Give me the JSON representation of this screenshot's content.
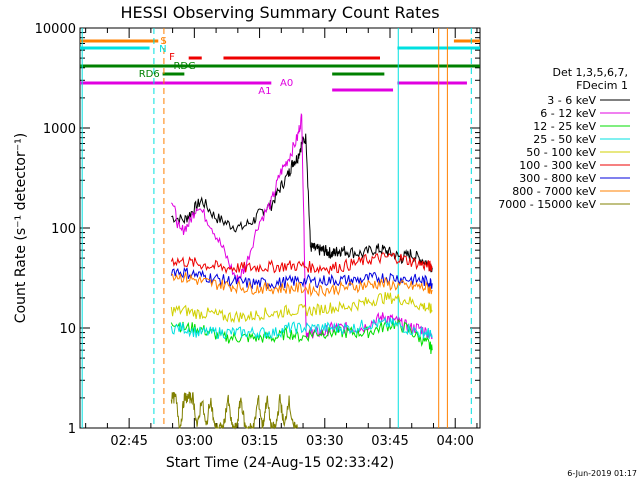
{
  "chart_data": {
    "type": "line",
    "title": "HESSI Observing Summary Count Rates",
    "xlabel": "Start Time (24-Aug-15 02:33:42)",
    "ylabel": "Count Rate (s⁻¹ detector⁻¹)",
    "yscale": "log",
    "ylim": [
      1,
      10000
    ],
    "xlim_minutes": [
      0,
      92
    ],
    "x_ticks": [
      "02:45",
      "03:00",
      "03:15",
      "03:30",
      "03:45",
      "04:00"
    ],
    "y_ticks": [
      "1",
      "10",
      "100",
      "1000",
      "10000"
    ],
    "footer": "6-Jun-2019 01:17",
    "legend": {
      "position": "right",
      "header": [
        "Det 1,3,5,6,7,",
        "FDecim 1"
      ],
      "entries": [
        {
          "label": "3 - 6 keV",
          "color": "#000000"
        },
        {
          "label": "6 - 12 keV",
          "color": "#e000e0"
        },
        {
          "label": "12 - 25 keV",
          "color": "#00dd00"
        },
        {
          "label": "25 - 50 keV",
          "color": "#00e0e0"
        },
        {
          "label": "50 - 100 keV",
          "color": "#d0d000"
        },
        {
          "label": "100 - 300 keV",
          "color": "#ee0000"
        },
        {
          "label": "300 - 800 keV",
          "color": "#0000dd"
        },
        {
          "label": "800 - 7000 keV",
          "color": "#ff8000"
        },
        {
          "label": "7000 - 15000 keV",
          "color": "#808000"
        }
      ]
    },
    "flag_labels": [
      {
        "text": "S",
        "color": "#ff8000"
      },
      {
        "text": "N",
        "color": "#00e0e0"
      },
      {
        "text": "F",
        "color": "#ee0000"
      },
      {
        "text": "RDG",
        "color": "#008000"
      },
      {
        "text": "RD6",
        "color": "#008000"
      },
      {
        "text": "A0",
        "color": "#e000e0"
      },
      {
        "text": "A1",
        "color": "#e000e0"
      }
    ],
    "series_minutes": [
      {
        "name": "3 - 6 keV",
        "color": "#000000",
        "x": [
          21,
          24,
          26,
          28,
          31,
          34,
          37,
          40,
          42,
          44,
          46,
          48,
          49,
          50,
          51,
          52,
          53,
          54,
          55,
          56,
          57,
          58,
          59,
          60,
          62,
          65,
          68,
          70,
          72,
          74,
          76,
          78,
          80,
          81
        ],
        "y": [
          130,
          120,
          150,
          190,
          130,
          110,
          100,
          120,
          150,
          170,
          250,
          350,
          460,
          500,
          700,
          800,
          65,
          62,
          60,
          60,
          58,
          55,
          58,
          60,
          58,
          55,
          62,
          60,
          55,
          50,
          55,
          50,
          45,
          40
        ]
      },
      {
        "name": "6 - 12 keV",
        "color": "#e000e0",
        "x": [
          21,
          23,
          25,
          27,
          30,
          33,
          36,
          38,
          41,
          44,
          46,
          48,
          50,
          51,
          52,
          53,
          54,
          56,
          58,
          60,
          62,
          65,
          68,
          70,
          72,
          74,
          76,
          78,
          80,
          81
        ],
        "y": [
          200,
          90,
          110,
          170,
          110,
          60,
          30,
          40,
          110,
          180,
          350,
          500,
          800,
          1300,
          9,
          9,
          9,
          9,
          10,
          10,
          10,
          10,
          12,
          13,
          12,
          11,
          10,
          10,
          9,
          8
        ]
      },
      {
        "name": "12 - 25 keV",
        "color": "#00dd00",
        "x": [
          21,
          24,
          27,
          30,
          33,
          36,
          39,
          42,
          45,
          48,
          51,
          54,
          57,
          60,
          63,
          66,
          69,
          72,
          75,
          78,
          80,
          81
        ],
        "y": [
          12,
          10,
          10,
          9,
          8,
          8,
          8,
          8,
          8,
          9,
          8,
          9,
          9,
          9,
          9,
          9,
          10,
          11,
          10,
          8,
          7,
          6
        ]
      },
      {
        "name": "25 - 50 keV",
        "color": "#00e0e0",
        "x": [
          21,
          24,
          27,
          30,
          33,
          36,
          39,
          42,
          45,
          48,
          51,
          54,
          57,
          60,
          63,
          66,
          69,
          72,
          75,
          78,
          80,
          81
        ],
        "y": [
          10,
          10,
          9,
          9,
          9,
          9,
          9,
          9,
          9,
          10,
          10,
          10,
          10,
          10,
          10,
          11,
          11,
          11,
          10,
          9,
          9,
          8
        ]
      },
      {
        "name": "50 - 100 keV",
        "color": "#d0d000",
        "x": [
          21,
          24,
          27,
          30,
          33,
          36,
          39,
          42,
          45,
          48,
          51,
          54,
          57,
          60,
          63,
          66,
          69,
          72,
          75,
          78,
          80,
          81
        ],
        "y": [
          15,
          15,
          14,
          14,
          13,
          13,
          13,
          14,
          14,
          15,
          15,
          15,
          16,
          16,
          17,
          18,
          20,
          20,
          19,
          17,
          16,
          15
        ]
      },
      {
        "name": "100 - 300 keV",
        "color": "#ee0000",
        "x": [
          21,
          24,
          27,
          30,
          33,
          36,
          39,
          42,
          45,
          48,
          51,
          54,
          57,
          60,
          63,
          66,
          69,
          72,
          75,
          78,
          80,
          81
        ],
        "y": [
          48,
          46,
          44,
          42,
          40,
          40,
          40,
          41,
          41,
          42,
          42,
          40,
          40,
          41,
          44,
          48,
          50,
          52,
          48,
          44,
          42,
          40
        ]
      },
      {
        "name": "300 - 800 keV",
        "color": "#0000dd",
        "x": [
          21,
          24,
          27,
          30,
          33,
          36,
          39,
          42,
          45,
          48,
          51,
          54,
          57,
          60,
          63,
          66,
          69,
          72,
          75,
          78,
          80,
          81
        ],
        "y": [
          38,
          36,
          34,
          32,
          30,
          29,
          28,
          28,
          28,
          29,
          30,
          29,
          30,
          30,
          30,
          31,
          32,
          32,
          31,
          30,
          29,
          28
        ]
      },
      {
        "name": "800 - 7000 keV",
        "color": "#ff8000",
        "x": [
          21,
          24,
          27,
          30,
          33,
          36,
          39,
          42,
          45,
          48,
          51,
          54,
          57,
          60,
          63,
          66,
          69,
          72,
          75,
          78,
          80,
          81
        ],
        "y": [
          35,
          32,
          30,
          28,
          27,
          26,
          25,
          25,
          25,
          25,
          25,
          24,
          24,
          25,
          26,
          27,
          28,
          27,
          26,
          26,
          25,
          24
        ]
      },
      {
        "name": "7000 - 15000 keV",
        "color": "#808000",
        "x": [
          21,
          22,
          23,
          24,
          25,
          26,
          27,
          28,
          29,
          30,
          31,
          32,
          33,
          34,
          35,
          36,
          37,
          38,
          39,
          40,
          41,
          42,
          43,
          44,
          45,
          46,
          47,
          48,
          49,
          50
        ],
        "y": [
          2,
          2,
          1,
          2,
          2,
          2,
          1,
          2,
          1,
          2,
          1,
          1,
          1,
          2,
          1,
          1,
          2,
          1,
          1,
          1,
          2,
          1,
          2,
          1,
          1,
          2,
          1,
          2,
          1,
          1
        ]
      }
    ]
  }
}
